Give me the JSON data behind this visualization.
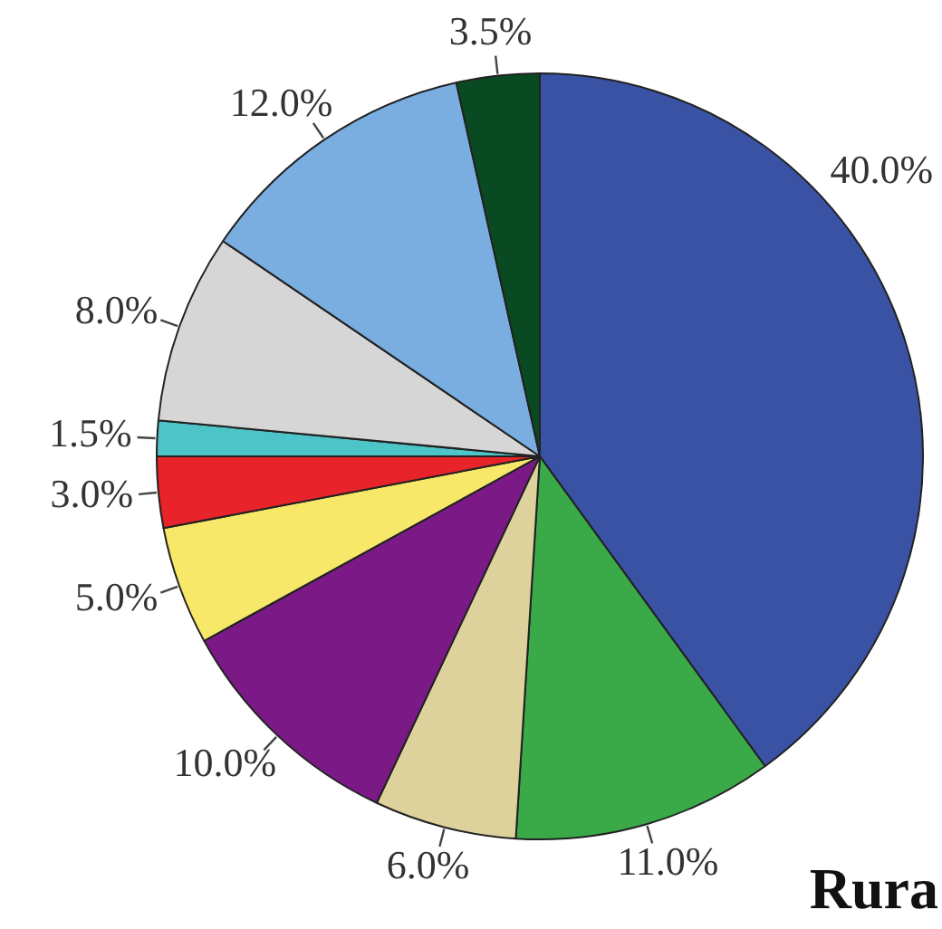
{
  "chart_data": {
    "type": "pie",
    "categories": [
      null,
      null,
      null,
      null,
      null,
      null,
      null,
      null,
      null,
      null
    ],
    "values": [
      40,
      11,
      6,
      10,
      5,
      3,
      1.5,
      8,
      12,
      3.5
    ],
    "colors": [
      "#3a52a4",
      "#3aaa48",
      "#ddd29c",
      "#7b1a86",
      "#f8e86a",
      "#e8232a",
      "#4cc4c8",
      "#d6d6d6",
      "#7aaee0",
      "#0a4a22"
    ],
    "value_labels": [
      "40.0%",
      "11.0%",
      "6.0%",
      "10.0%",
      "5.0%",
      "3.0%",
      "1.5%",
      "8.0%",
      "12.0%",
      "3.5%"
    ],
    "annotations": [
      "Rura"
    ]
  }
}
